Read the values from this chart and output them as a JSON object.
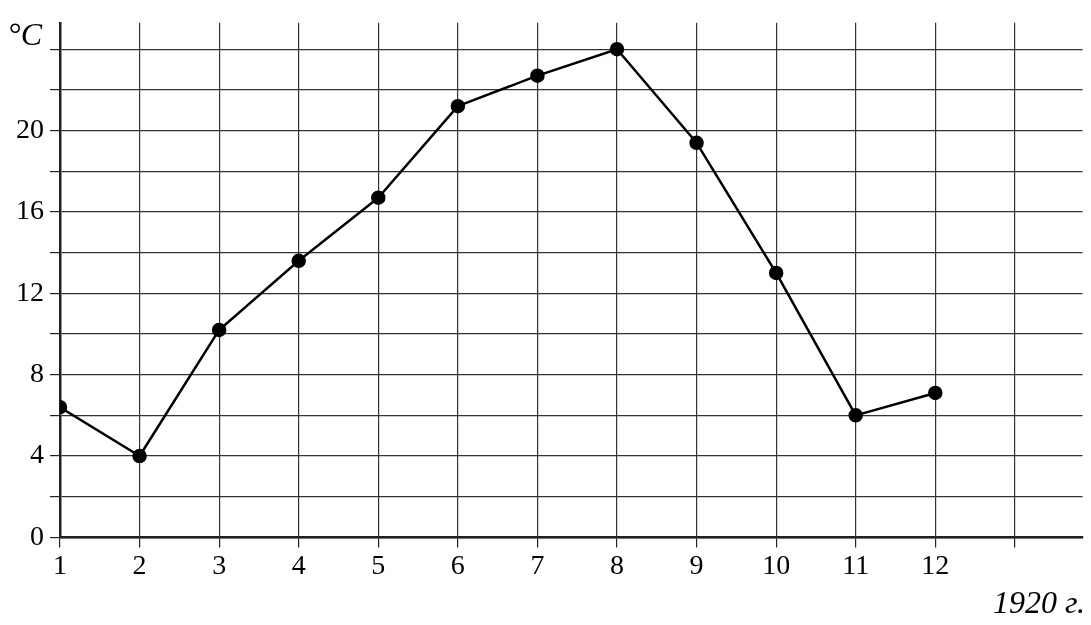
{
  "chart_data": {
    "type": "line",
    "ylabel": "°C",
    "xlabel": "1920 г.",
    "x": [
      1,
      2,
      3,
      4,
      5,
      6,
      7,
      8,
      9,
      10,
      11,
      12
    ],
    "series": [
      {
        "color": "#000000",
        "values": [
          6.4,
          4,
          10.2,
          13.6,
          16.7,
          21.2,
          22.7,
          24,
          19.4,
          13,
          6,
          7.1
        ]
      }
    ],
    "xlim": [
      1,
      13.85
    ],
    "xticks": [
      1,
      2,
      3,
      4,
      5,
      6,
      7,
      8,
      9,
      10,
      11,
      12,
      {
        "value": 13,
        "label": null
      }
    ],
    "ylim": [
      0,
      25.3
    ],
    "yticks": [
      0,
      {
        "value": 2,
        "label": null
      },
      4,
      {
        "value": 6,
        "label": null
      },
      8,
      {
        "value": 10,
        "label": null
      },
      12,
      {
        "value": 14,
        "label": null
      },
      16,
      {
        "value": 18,
        "label": null
      },
      20,
      {
        "value": 22,
        "label": null
      },
      {
        "value": 24,
        "label": null
      }
    ],
    "grid": true,
    "marker": "circle",
    "line_style": "solid",
    "legend": false
  }
}
